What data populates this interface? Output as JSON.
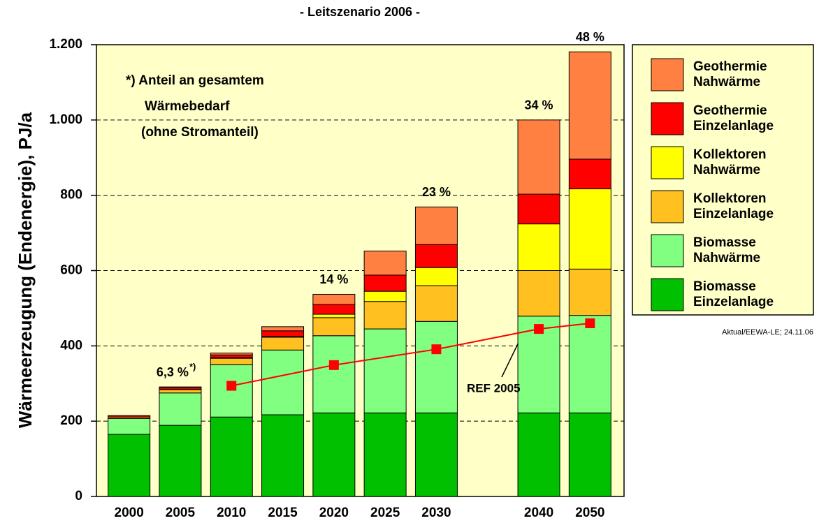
{
  "chart_data": {
    "type": "bar",
    "stacked": true,
    "title": "- Leitszenario 2006 -",
    "y_label": "Wärmeerzeugung (Endenergie),  PJ/a",
    "categories": [
      "2000",
      "2005",
      "2010",
      "2015",
      "2020",
      "2025",
      "2030",
      null,
      "2040",
      "2050"
    ],
    "series": [
      {
        "name": "Biomasse Einzelanlage",
        "color": "#00c000",
        "values": [
          165,
          189,
          211,
          217,
          222,
          222,
          222,
          null,
          222,
          222
        ]
      },
      {
        "name": "Biomasse Nahwärme",
        "color": "#80ff80",
        "values": [
          42,
          86,
          139,
          172,
          205,
          223,
          243,
          null,
          257,
          259
        ]
      },
      {
        "name": "Kollektoren Einzelanlage",
        "color": "#ffc020",
        "values": [
          4,
          9,
          17,
          34,
          48,
          73,
          95,
          null,
          121,
          123
        ]
      },
      {
        "name": "Kollektoren Nahwärme",
        "color": "#ffff00",
        "values": [
          0,
          1,
          2,
          2,
          9,
          27,
          48,
          null,
          124,
          213
        ]
      },
      {
        "name": "Geothermie Einzelanlage",
        "color": "#ff0000",
        "values": [
          4,
          5,
          7,
          15,
          26,
          43,
          61,
          null,
          79,
          79
        ]
      },
      {
        "name": "Geothermie Nahwärme",
        "color": "#ff8040",
        "values": [
          0,
          1,
          5,
          11,
          27,
          64,
          100,
          null,
          197,
          285
        ]
      }
    ],
    "lines": [
      {
        "name": "REF 2005",
        "color": "#ff0000",
        "x": [
          "2010",
          "2020",
          "2030",
          "2040",
          "2050"
        ],
        "values": [
          294,
          349,
          391,
          445,
          460
        ]
      }
    ],
    "ylim": [
      0,
      1200
    ],
    "yticks": [
      0,
      200,
      400,
      600,
      800,
      {
        "value": 1000,
        "label": "1.000"
      },
      {
        "value": 1200,
        "label": "1.200"
      }
    ],
    "grid": true,
    "legend": "right",
    "annotations": [
      {
        "text": "6,3 %",
        "sup": "*)",
        "category": "2005"
      },
      {
        "text": "14 %",
        "category": "2020"
      },
      {
        "text": "23 %",
        "category": "2030"
      },
      {
        "text": "34 %",
        "category": "2040"
      },
      {
        "text": "48 %",
        "category": "2050"
      }
    ],
    "note": [
      "*) Anteil an gesamtem",
      "Wärmebedarf",
      "(ohne Stromanteil)"
    ],
    "source": "Aktual/EEWA-LE; 24.11.06"
  }
}
